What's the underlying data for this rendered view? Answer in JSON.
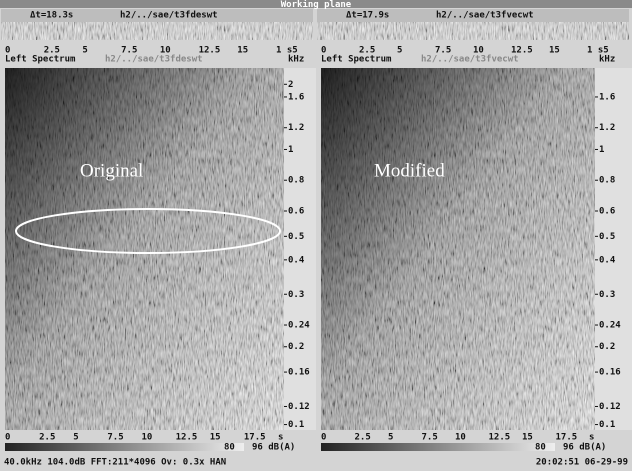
{
  "title": "Working plane",
  "panels": [
    {
      "dt": "Δt=18.3s",
      "file": "h2/../sae/t3fdeswt",
      "top_ticks": [
        "0",
        "2.5",
        "5",
        "7.5",
        "10",
        "12.5",
        "15",
        "1 s5"
      ],
      "spectrum_label": "Left Spectrum",
      "file_faded": "h2/../sae/t3fdeswt",
      "unit": "kHz",
      "freq_labels": [
        "2",
        "1.6",
        "1.2",
        "1",
        "0.8",
        "0.6",
        "0.5",
        "0.4",
        "0.3",
        "0.24",
        "0.2",
        "0.16",
        "0.12",
        "0.1"
      ],
      "overlay": "Original",
      "bottom_ticks": [
        "0",
        "2.5",
        "5",
        "7.5",
        "10",
        "12.5",
        "15",
        "17.5",
        "s"
      ]
    },
    {
      "dt": "Δt=17.9s",
      "file": "h2/../sae/t3fvecwt",
      "top_ticks": [
        "0",
        "2.5",
        "5",
        "7.5",
        "10",
        "12.5",
        "15",
        "1 s5"
      ],
      "spectrum_label": "Left Spectrum",
      "file_faded": "h2/../sae/t3fvecwt",
      "unit": "kHz",
      "freq_labels": [
        "1.6",
        "1.2",
        "1",
        "0.8",
        "0.6",
        "0.5",
        "0.4",
        "0.3",
        "0.24",
        "0.2",
        "0.16",
        "0.12",
        "0.1"
      ],
      "overlay": "Modified",
      "bottom_ticks": [
        "0",
        "2.5",
        "5",
        "7.5",
        "10",
        "12.5",
        "15",
        "17.5",
        "s"
      ]
    }
  ],
  "scale_labels": [
    "80",
    "96 dB(A)"
  ],
  "status": {
    "left": "40.0kHz 104.0dB FFT:211*4096 Ov: 0.3x HAN",
    "right": "20:02:51 06-29-99"
  }
}
